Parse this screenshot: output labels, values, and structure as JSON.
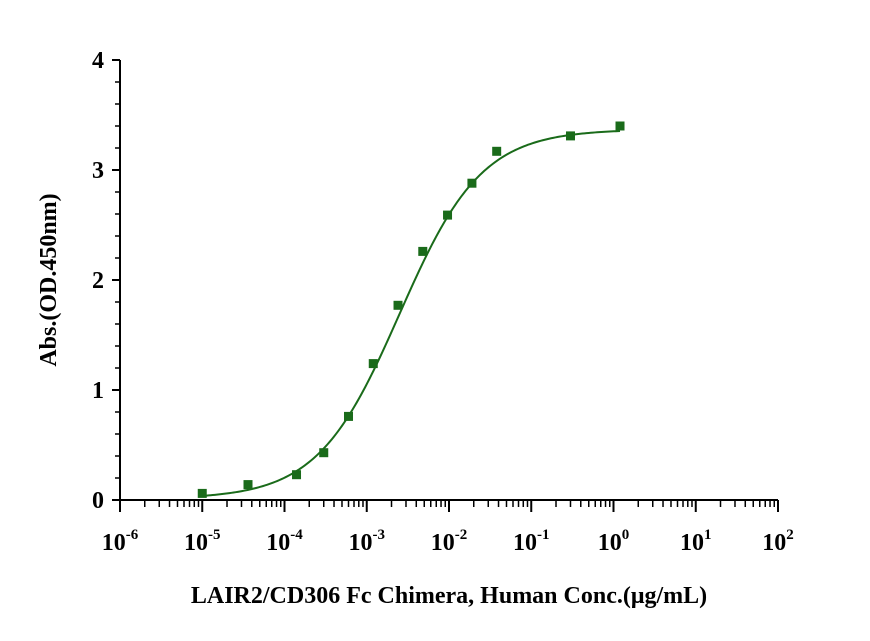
{
  "chart_data": {
    "type": "scatter",
    "title": "",
    "xlabel": "LAIR2/CD306 Fc Chimera, Human Conc.(μg/mL)",
    "ylabel": "Abs.(OD.450nm)",
    "x_scale": "log",
    "xlim": [
      1e-06,
      100
    ],
    "ylim": [
      0,
      4
    ],
    "x_ticks": [
      {
        "base": "10",
        "exp": "-6"
      },
      {
        "base": "10",
        "exp": "-5"
      },
      {
        "base": "10",
        "exp": "-4"
      },
      {
        "base": "10",
        "exp": "-3"
      },
      {
        "base": "10",
        "exp": "-2"
      },
      {
        "base": "10",
        "exp": "-1"
      },
      {
        "base": "10",
        "exp": "0"
      },
      {
        "base": "10",
        "exp": "1"
      },
      {
        "base": "10",
        "exp": "2"
      }
    ],
    "y_ticks": [
      "0",
      "1",
      "2",
      "3",
      "4"
    ],
    "grid": false,
    "series_color": "#1a6b1a",
    "series": [
      {
        "x": [
          1e-05,
          3.6e-05,
          0.00014,
          0.0003,
          0.0006,
          0.0012,
          0.0024,
          0.0048,
          0.0096,
          0.019,
          0.038,
          0.3,
          1.2
        ],
        "y": [
          0.06,
          0.14,
          0.23,
          0.43,
          0.76,
          1.24,
          1.77,
          2.26,
          2.59,
          2.88,
          3.17,
          3.31,
          3.4
        ]
      }
    ],
    "fit_curve": {
      "model": "4PL",
      "bottom": 0.01,
      "top": 3.37,
      "ec50": 0.0025,
      "hill": 0.87
    }
  }
}
